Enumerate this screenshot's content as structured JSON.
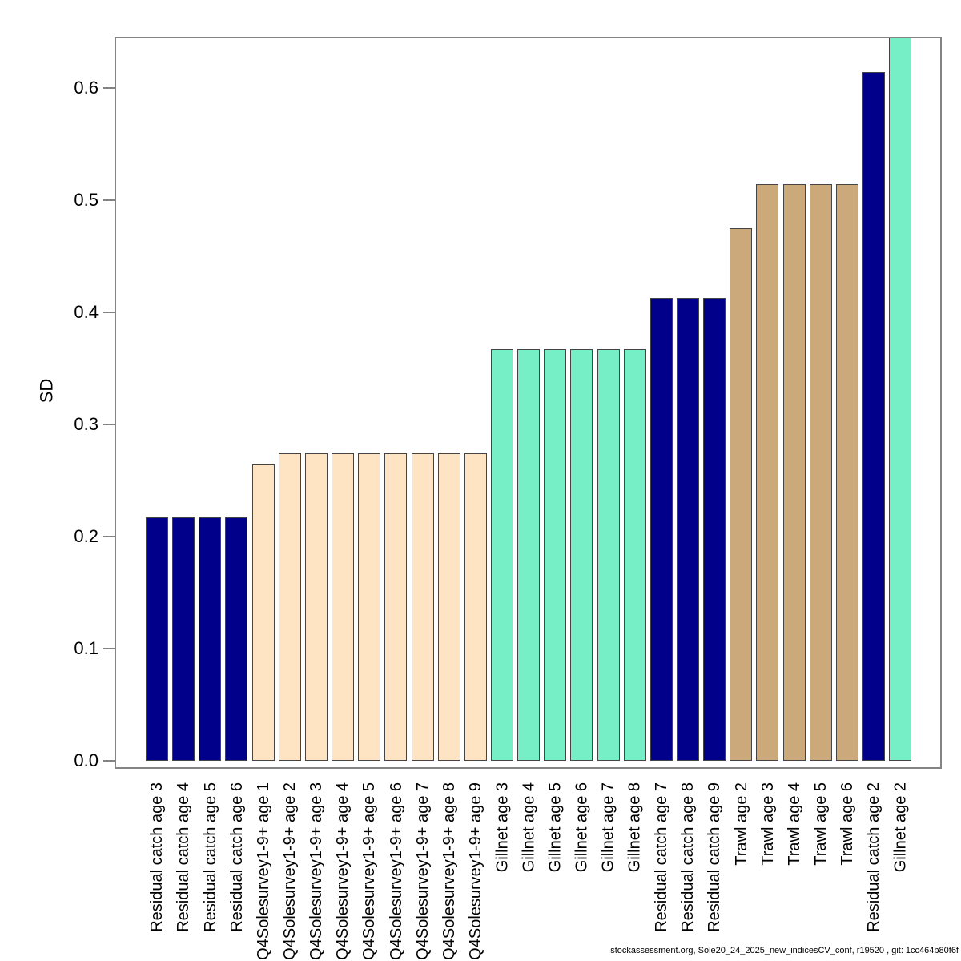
{
  "footer": {
    "credit": "stockassessment.org, Sole20_24_2025_new_indicesCV_conf, r19520 , git: 1cc464b80f6f"
  },
  "chart_data": {
    "type": "bar",
    "title": "",
    "xlabel": "",
    "ylabel": "SD",
    "ylim": [
      0,
      0.646
    ],
    "ytick_labels": [
      "0.0",
      "0.1",
      "0.2",
      "0.3",
      "0.4",
      "0.5",
      "0.6"
    ],
    "grid": false,
    "legend_position": "none",
    "note": "Gillnet age 2 bar exceeds the axis maximum and is clipped at the top of the plot box",
    "group_colors": {
      "Residual catch": "#00008B",
      "Q4Solesurvey1-9+": "#FFE4C4",
      "Gillnet": "#76EEC6",
      "Trawl": "#CBA97B"
    },
    "bars": [
      {
        "label": "Residual catch age 3",
        "value": 0.217,
        "group": "Residual catch",
        "color": "#00008B"
      },
      {
        "label": "Residual catch age 4",
        "value": 0.217,
        "group": "Residual catch",
        "color": "#00008B"
      },
      {
        "label": "Residual catch age 5",
        "value": 0.217,
        "group": "Residual catch",
        "color": "#00008B"
      },
      {
        "label": "Residual catch age 6",
        "value": 0.217,
        "group": "Residual catch",
        "color": "#00008B"
      },
      {
        "label": "Q4Solesurvey1-9+ age 1",
        "value": 0.264,
        "group": "Q4Solesurvey1-9+",
        "color": "#FFE4C4"
      },
      {
        "label": "Q4Solesurvey1-9+ age 2",
        "value": 0.274,
        "group": "Q4Solesurvey1-9+",
        "color": "#FFE4C4"
      },
      {
        "label": "Q4Solesurvey1-9+ age 3",
        "value": 0.274,
        "group": "Q4Solesurvey1-9+",
        "color": "#FFE4C4"
      },
      {
        "label": "Q4Solesurvey1-9+ age 4",
        "value": 0.274,
        "group": "Q4Solesurvey1-9+",
        "color": "#FFE4C4"
      },
      {
        "label": "Q4Solesurvey1-9+ age 5",
        "value": 0.274,
        "group": "Q4Solesurvey1-9+",
        "color": "#FFE4C4"
      },
      {
        "label": "Q4Solesurvey1-9+ age 6",
        "value": 0.274,
        "group": "Q4Solesurvey1-9+",
        "color": "#FFE4C4"
      },
      {
        "label": "Q4Solesurvey1-9+ age 7",
        "value": 0.274,
        "group": "Q4Solesurvey1-9+",
        "color": "#FFE4C4"
      },
      {
        "label": "Q4Solesurvey1-9+ age 8",
        "value": 0.274,
        "group": "Q4Solesurvey1-9+",
        "color": "#FFE4C4"
      },
      {
        "label": "Q4Solesurvey1-9+ age 9",
        "value": 0.274,
        "group": "Q4Solesurvey1-9+",
        "color": "#FFE4C4"
      },
      {
        "label": "Gillnet age 3",
        "value": 0.367,
        "group": "Gillnet",
        "color": "#76EEC6"
      },
      {
        "label": "Gillnet age 4",
        "value": 0.367,
        "group": "Gillnet",
        "color": "#76EEC6"
      },
      {
        "label": "Gillnet age 5",
        "value": 0.367,
        "group": "Gillnet",
        "color": "#76EEC6"
      },
      {
        "label": "Gillnet age 6",
        "value": 0.367,
        "group": "Gillnet",
        "color": "#76EEC6"
      },
      {
        "label": "Gillnet age 7",
        "value": 0.367,
        "group": "Gillnet",
        "color": "#76EEC6"
      },
      {
        "label": "Gillnet age 8",
        "value": 0.367,
        "group": "Gillnet",
        "color": "#76EEC6"
      },
      {
        "label": "Residual catch age 7",
        "value": 0.413,
        "group": "Residual catch",
        "color": "#00008B"
      },
      {
        "label": "Residual catch age 8",
        "value": 0.413,
        "group": "Residual catch",
        "color": "#00008B"
      },
      {
        "label": "Residual catch age 9",
        "value": 0.413,
        "group": "Residual catch",
        "color": "#00008B"
      },
      {
        "label": "Trawl age 2",
        "value": 0.475,
        "group": "Trawl",
        "color": "#CBA97B"
      },
      {
        "label": "Trawl age 3",
        "value": 0.514,
        "group": "Trawl",
        "color": "#CBA97B"
      },
      {
        "label": "Trawl age 4",
        "value": 0.514,
        "group": "Trawl",
        "color": "#CBA97B"
      },
      {
        "label": "Trawl age 5",
        "value": 0.514,
        "group": "Trawl",
        "color": "#CBA97B"
      },
      {
        "label": "Trawl age 6",
        "value": 0.514,
        "group": "Trawl",
        "color": "#CBA97B"
      },
      {
        "label": "Residual catch age 2",
        "value": 0.614,
        "group": "Residual catch",
        "color": "#00008B"
      },
      {
        "label": "Gillnet age 2",
        "value": 0.65,
        "group": "Gillnet",
        "color": "#76EEC6",
        "clipped": true
      }
    ]
  }
}
